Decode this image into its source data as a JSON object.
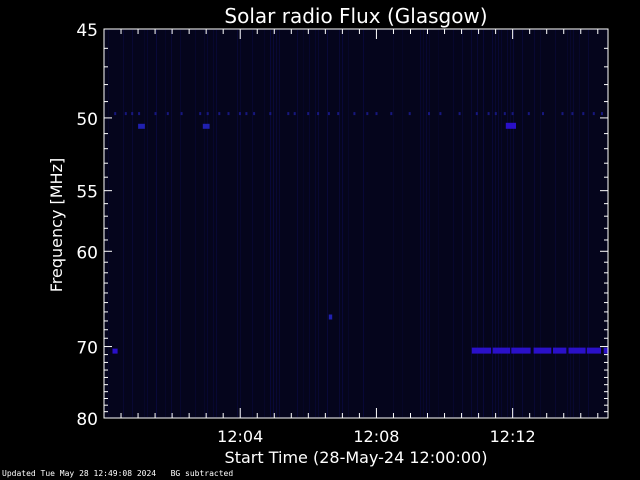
{
  "chart_data": {
    "type": "heatmap",
    "title": "Solar radio Flux (Glasgow)",
    "xlabel": "Start Time (28-May-24 12:00:00)",
    "ylabel": "Frequency [MHz]",
    "yticks": [
      45,
      50,
      55,
      60,
      70,
      80
    ],
    "ylim": [
      45,
      80
    ],
    "xticks": [
      "12:04",
      "12:08",
      "12:12"
    ],
    "xlim_minutes": [
      0,
      14.8
    ],
    "x_tick_minutes": [
      4,
      8,
      12
    ],
    "colors": {
      "background": "#000000",
      "plot": "#05051c",
      "signal_dim": "#0b0b45",
      "signal_strong": "#2a10c8",
      "axis": "#ffffff"
    },
    "features": [
      {
        "label": "band",
        "freq_mhz": 49.7,
        "t_start": 0.3,
        "t_end": 14.8,
        "intensity": 0.35
      },
      {
        "label": "band",
        "freq_mhz": 50.5,
        "t_start": 1.0,
        "t_end": 1.2,
        "intensity": 0.6
      },
      {
        "label": "band",
        "freq_mhz": 50.5,
        "t_start": 2.9,
        "t_end": 3.1,
        "intensity": 0.55
      },
      {
        "label": "band",
        "freq_mhz": 50.5,
        "t_start": 11.8,
        "t_end": 12.1,
        "intensity": 0.65
      },
      {
        "label": "band",
        "freq_mhz": 66.5,
        "t_start": 6.6,
        "t_end": 6.7,
        "intensity": 0.5
      },
      {
        "label": "band",
        "freq_mhz": 70.5,
        "t_start": 0.25,
        "t_end": 0.4,
        "intensity": 0.75
      },
      {
        "label": "band",
        "freq_mhz": 70.5,
        "t_start": 10.8,
        "t_end": 14.8,
        "intensity": 0.8
      }
    ]
  },
  "footer": {
    "updated": "Updated Tue May 28 12:49:08 2024",
    "note": "BG subtracted"
  }
}
